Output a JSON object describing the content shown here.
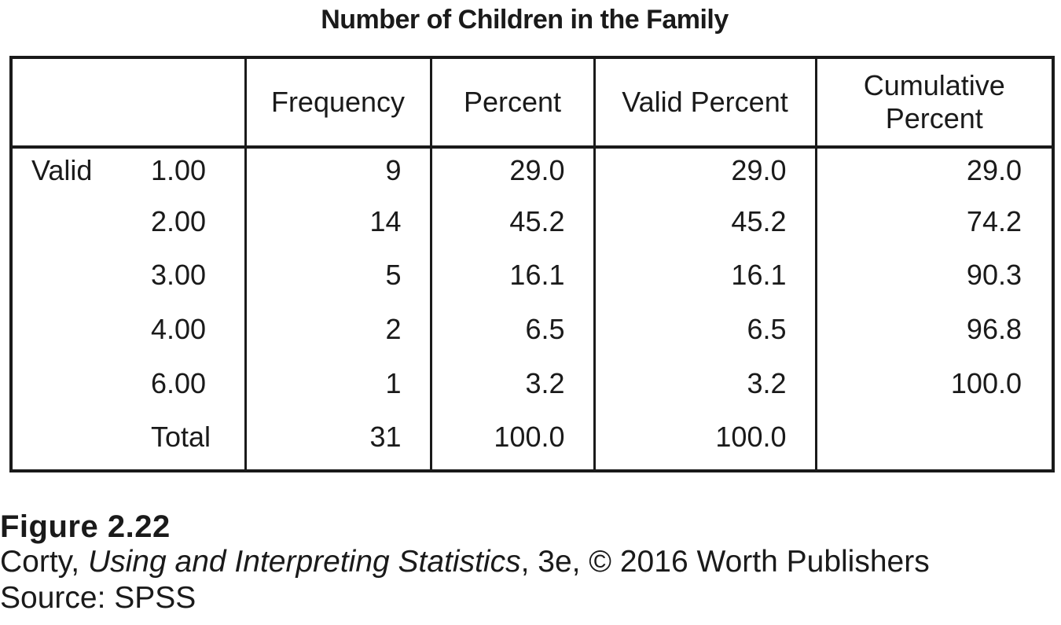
{
  "table": {
    "title": "Number of Children in the Family",
    "headers": {
      "label": "",
      "frequency": "Frequency",
      "percent": "Percent",
      "valid_percent": "Valid Percent",
      "cumulative_line1": "Cumulative",
      "cumulative_line2": "Percent"
    },
    "group_label": "Valid",
    "rows": [
      {
        "value": "1.00",
        "frequency": "9",
        "percent": "29.0",
        "valid_percent": "29.0",
        "cumulative_percent": "29.0"
      },
      {
        "value": "2.00",
        "frequency": "14",
        "percent": "45.2",
        "valid_percent": "45.2",
        "cumulative_percent": "74.2"
      },
      {
        "value": "3.00",
        "frequency": "5",
        "percent": "16.1",
        "valid_percent": "16.1",
        "cumulative_percent": "90.3"
      },
      {
        "value": "4.00",
        "frequency": "2",
        "percent": "6.5",
        "valid_percent": "6.5",
        "cumulative_percent": "96.8"
      },
      {
        "value": "6.00",
        "frequency": "1",
        "percent": "3.2",
        "valid_percent": "3.2",
        "cumulative_percent": "100.0"
      },
      {
        "value": "Total",
        "frequency": "31",
        "percent": "100.0",
        "valid_percent": "100.0",
        "cumulative_percent": ""
      }
    ]
  },
  "caption": {
    "figure_number": "Figure 2.22",
    "author": "Corty, ",
    "book_title": "Using and Interpreting Statistics",
    "edition_rest": ", 3e, © 2016 Worth Publishers",
    "source": "Source: SPSS"
  }
}
